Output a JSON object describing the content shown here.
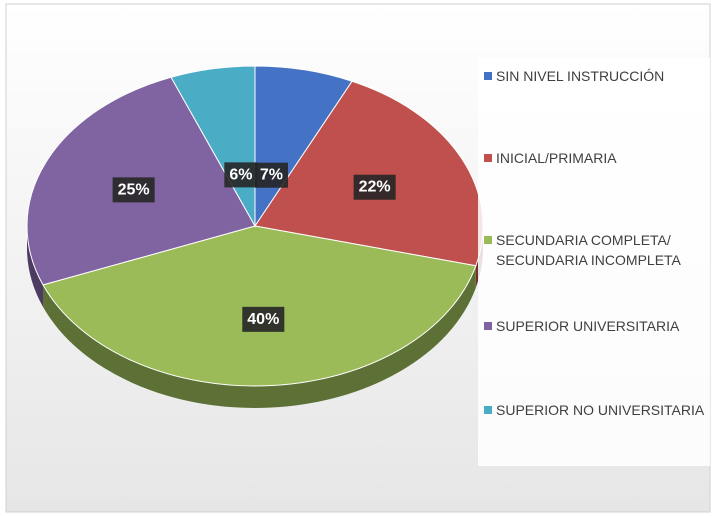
{
  "chart_data": {
    "type": "pie",
    "categories": [
      "SIN NIVEL INSTRUCCIÓN",
      "INICIAL/PRIMARIA",
      "SECUNDARIA COMPLETA/ SECUNDARIA INCOMPLETA",
      "SUPERIOR UNIVERSITARIA",
      "SUPERIOR NO UNIVERSITARIA"
    ],
    "values": [
      7,
      22,
      40,
      25,
      6
    ],
    "value_labels": [
      "7%",
      "22%",
      "40%",
      "25%",
      "6%"
    ],
    "colors": [
      "#4472c4",
      "#c0504d",
      "#9bbb59",
      "#8064a2",
      "#4bacc6"
    ],
    "legend": "right"
  }
}
